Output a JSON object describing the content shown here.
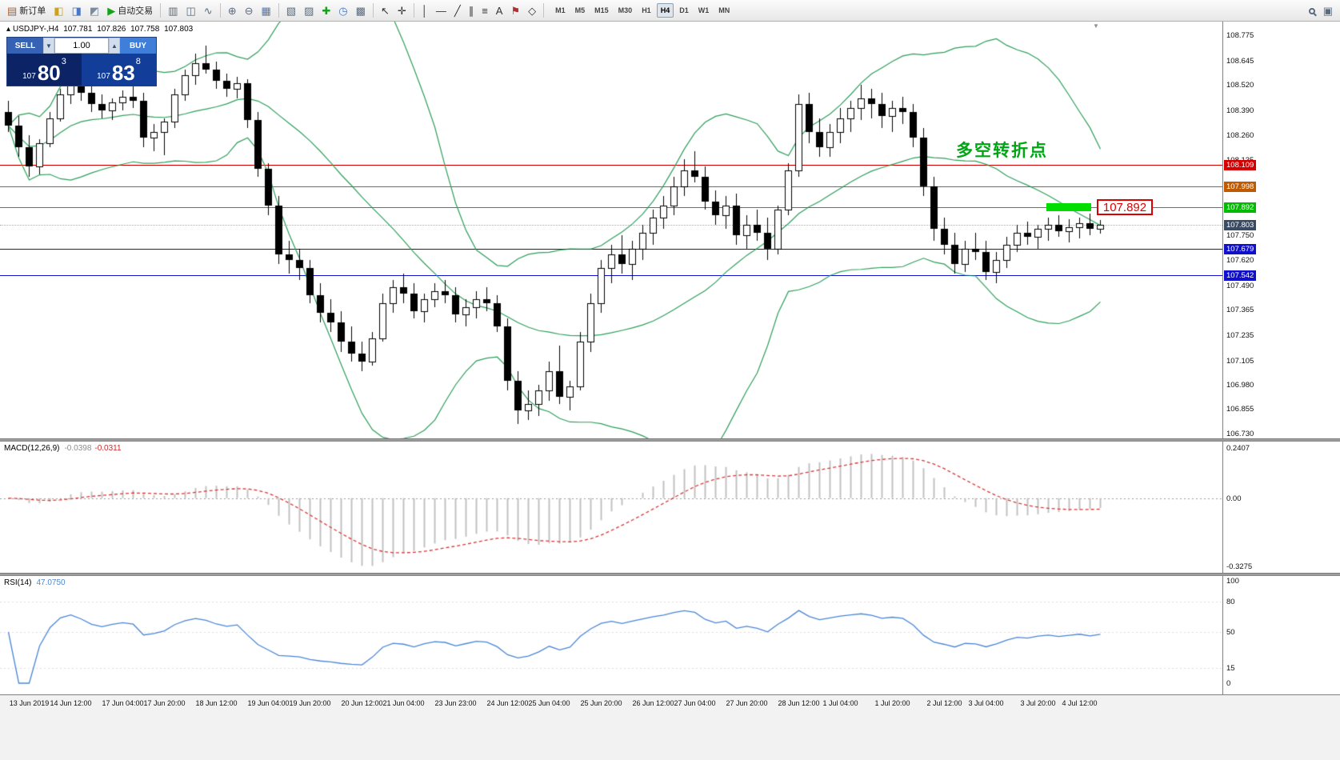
{
  "toolbar": {
    "items": [
      {
        "name": "new-order",
        "label": "新订单",
        "color": "#b05a2a"
      },
      {
        "name": "market-watch",
        "color": "#c8a220"
      },
      {
        "name": "data-window",
        "color": "#4a76c4"
      },
      {
        "name": "navigator",
        "color": "#7a8aa0"
      },
      {
        "name": "autotrade",
        "label": "自动交易",
        "color": "#17a317"
      },
      {
        "sep": true
      },
      {
        "name": "bar-chart",
        "color": "#5a6b7e"
      },
      {
        "name": "candle-chart",
        "color": "#5a6b7e"
      },
      {
        "name": "line-chart",
        "color": "#5a6b7e"
      },
      {
        "sep": true
      },
      {
        "name": "zoom-in",
        "color": "#5a6b7e"
      },
      {
        "name": "zoom-out",
        "color": "#5a6b7e"
      },
      {
        "name": "tile-windows",
        "color": "#4a76c4"
      },
      {
        "sep": true
      },
      {
        "name": "new-chart",
        "color": "#5a6b7e"
      },
      {
        "name": "profiles",
        "color": "#5a6b7e"
      },
      {
        "name": "indicators",
        "color": "#17a317"
      },
      {
        "name": "periods",
        "color": "#4a76c4"
      },
      {
        "name": "templates",
        "color": "#5a6b7e"
      },
      {
        "sep": true
      },
      {
        "name": "cursor",
        "color": "#333333"
      },
      {
        "name": "crosshair",
        "color": "#333333"
      },
      {
        "sep": true
      },
      {
        "name": "vertical-line",
        "color": "#333333"
      },
      {
        "name": "horizontal-line",
        "color": "#333333"
      },
      {
        "name": "trendline",
        "color": "#333333"
      },
      {
        "name": "channel",
        "color": "#333333"
      },
      {
        "name": "fibonacci",
        "color": "#333333"
      },
      {
        "name": "text",
        "color": "#333333"
      },
      {
        "name": "label",
        "color": "#b03030"
      },
      {
        "name": "shapes",
        "color": "#333333"
      },
      {
        "sep": true
      }
    ],
    "timeframes": {
      "options": [
        "M1",
        "M5",
        "M15",
        "M30",
        "H1",
        "H4",
        "D1",
        "W1",
        "MN"
      ],
      "active": "H4"
    },
    "right_items": [
      {
        "name": "search",
        "color": "#5a6b7e"
      },
      {
        "name": "window-list",
        "color": "#5a6b7e"
      }
    ]
  },
  "chart": {
    "info": {
      "marker": "▴",
      "symbol": "USDJPY-,H4",
      "open": "107.781",
      "high": "107.826",
      "low": "107.758",
      "close": "107.803"
    },
    "trade_panel": {
      "sell_label": "SELL",
      "buy_label": "BUY",
      "volume": "1.00",
      "sell_price": {
        "prefix": "107",
        "big": "80",
        "sup": "3"
      },
      "buy_price": {
        "prefix": "107",
        "big": "83",
        "sup": "8"
      }
    },
    "annotation": {
      "text": "多空转折点",
      "color": "#00A513"
    },
    "highlight": {
      "price": 107.892,
      "rect_color": "#00DD00",
      "callout": "107.892",
      "callout_color": "#DD0000"
    },
    "lines": [
      {
        "price": 108.109,
        "label": "108.109",
        "color": "#D40000"
      },
      {
        "price": 107.998,
        "label": "107.998",
        "color": "#C05A00"
      },
      {
        "price": 107.892,
        "label": "107.892",
        "color": "#00BB00"
      },
      {
        "price": 107.679,
        "label": "107.679",
        "color": "#1010CC"
      },
      {
        "price": 107.542,
        "label": "107.542",
        "color": "#1010CC"
      }
    ],
    "current_price": {
      "price": 107.803,
      "label": "107.803",
      "bg": "#3A4A63"
    },
    "y_ticks": [
      "108.775",
      "108.645",
      "108.520",
      "108.390",
      "108.260",
      "108.135",
      "108.005",
      "107.875",
      "107.750",
      "107.620",
      "107.490",
      "107.365",
      "107.235",
      "107.105",
      "106.980",
      "106.855",
      "106.730"
    ]
  },
  "macd": {
    "title": "MACD(12,26,9)",
    "value_main": "-0.0398",
    "value_signal": "-0.0311"
  },
  "rsi": {
    "title": "RSI(14)",
    "value": "47.0750"
  },
  "chart_data": {
    "type": "candlestick",
    "symbol": "USDJPY",
    "timeframe": "H4",
    "y_range": [
      106.705,
      108.845
    ],
    "candles": [
      [
        108.38,
        108.44,
        108.28,
        108.31
      ],
      [
        108.31,
        108.36,
        108.15,
        108.2
      ],
      [
        108.2,
        108.26,
        108.05,
        108.1
      ],
      [
        108.1,
        108.24,
        108.06,
        108.22
      ],
      [
        108.22,
        108.38,
        108.2,
        108.35
      ],
      [
        108.35,
        108.5,
        108.33,
        108.47
      ],
      [
        108.47,
        108.56,
        108.42,
        108.52
      ],
      [
        108.52,
        108.57,
        108.44,
        108.48
      ],
      [
        108.48,
        108.52,
        108.38,
        108.42
      ],
      [
        108.42,
        108.47,
        108.35,
        108.39
      ],
      [
        108.39,
        108.45,
        108.34,
        108.43
      ],
      [
        108.43,
        108.49,
        108.39,
        108.46
      ],
      [
        108.46,
        108.52,
        108.4,
        108.44
      ],
      [
        108.44,
        108.48,
        108.2,
        108.25
      ],
      [
        108.25,
        108.32,
        108.18,
        108.28
      ],
      [
        108.28,
        108.35,
        108.16,
        108.33
      ],
      [
        108.33,
        108.5,
        108.3,
        108.47
      ],
      [
        108.47,
        108.6,
        108.44,
        108.57
      ],
      [
        108.57,
        108.68,
        108.52,
        108.63
      ],
      [
        108.63,
        108.72,
        108.58,
        108.6
      ],
      [
        108.6,
        108.64,
        108.5,
        108.54
      ],
      [
        108.54,
        108.58,
        108.46,
        108.5
      ],
      [
        108.5,
        108.56,
        108.45,
        108.53
      ],
      [
        108.53,
        108.55,
        108.3,
        108.34
      ],
      [
        108.34,
        108.38,
        108.05,
        108.09
      ],
      [
        108.09,
        108.12,
        107.85,
        107.9
      ],
      [
        107.9,
        107.95,
        107.6,
        107.65
      ],
      [
        107.65,
        107.72,
        107.55,
        107.62
      ],
      [
        107.62,
        107.68,
        107.52,
        107.58
      ],
      [
        107.58,
        107.62,
        107.4,
        107.44
      ],
      [
        107.44,
        107.5,
        107.3,
        107.35
      ],
      [
        107.35,
        107.42,
        107.25,
        107.3
      ],
      [
        107.3,
        107.36,
        107.15,
        107.2
      ],
      [
        107.2,
        107.28,
        107.1,
        107.14
      ],
      [
        107.14,
        107.2,
        107.05,
        107.1
      ],
      [
        107.1,
        107.25,
        107.08,
        107.22
      ],
      [
        107.22,
        107.45,
        107.2,
        107.4
      ],
      [
        107.4,
        107.52,
        107.35,
        107.48
      ],
      [
        107.48,
        107.55,
        107.4,
        107.45
      ],
      [
        107.45,
        107.5,
        107.32,
        107.36
      ],
      [
        107.36,
        107.45,
        107.3,
        107.42
      ],
      [
        107.42,
        107.5,
        107.38,
        107.46
      ],
      [
        107.46,
        107.52,
        107.4,
        107.44
      ],
      [
        107.44,
        107.48,
        107.3,
        107.34
      ],
      [
        107.34,
        107.42,
        107.28,
        107.38
      ],
      [
        107.38,
        107.46,
        107.32,
        107.42
      ],
      [
        107.42,
        107.48,
        107.36,
        107.4
      ],
      [
        107.4,
        107.44,
        107.25,
        107.28
      ],
      [
        107.28,
        107.32,
        106.95,
        107.0
      ],
      [
        107.0,
        107.05,
        106.78,
        106.85
      ],
      [
        106.85,
        106.95,
        106.8,
        106.88
      ],
      [
        106.88,
        106.98,
        106.82,
        106.95
      ],
      [
        106.95,
        107.1,
        106.9,
        107.05
      ],
      [
        107.05,
        107.18,
        106.88,
        106.92
      ],
      [
        106.92,
        107.0,
        106.85,
        106.97
      ],
      [
        106.97,
        107.25,
        106.95,
        107.2
      ],
      [
        107.2,
        107.45,
        107.15,
        107.4
      ],
      [
        107.4,
        107.62,
        107.35,
        107.58
      ],
      [
        107.58,
        107.7,
        107.5,
        107.65
      ],
      [
        107.65,
        107.75,
        107.55,
        107.6
      ],
      [
        107.6,
        107.72,
        107.52,
        107.68
      ],
      [
        107.68,
        107.8,
        107.62,
        107.76
      ],
      [
        107.76,
        107.88,
        107.7,
        107.84
      ],
      [
        107.84,
        107.95,
        107.78,
        107.9
      ],
      [
        107.9,
        108.05,
        107.85,
        108.0
      ],
      [
        108.0,
        108.14,
        107.95,
        108.08
      ],
      [
        108.08,
        108.18,
        108.02,
        108.05
      ],
      [
        108.05,
        108.1,
        107.88,
        107.92
      ],
      [
        107.92,
        107.98,
        107.8,
        107.85
      ],
      [
        107.85,
        107.95,
        107.78,
        107.9
      ],
      [
        107.9,
        107.96,
        107.7,
        107.75
      ],
      [
        107.75,
        107.85,
        107.68,
        107.8
      ],
      [
        107.8,
        107.88,
        107.72,
        107.76
      ],
      [
        107.76,
        107.84,
        107.62,
        107.68
      ],
      [
        107.68,
        107.9,
        107.65,
        107.88
      ],
      [
        107.88,
        108.12,
        107.85,
        108.08
      ],
      [
        108.08,
        108.47,
        108.05,
        108.42
      ],
      [
        108.42,
        108.48,
        108.22,
        108.28
      ],
      [
        108.28,
        108.35,
        108.15,
        108.2
      ],
      [
        108.2,
        108.32,
        108.15,
        108.28
      ],
      [
        108.28,
        108.4,
        108.22,
        108.35
      ],
      [
        108.35,
        108.44,
        108.28,
        108.4
      ],
      [
        108.4,
        108.52,
        108.34,
        108.45
      ],
      [
        108.45,
        108.5,
        108.35,
        108.42
      ],
      [
        108.42,
        108.48,
        108.3,
        108.36
      ],
      [
        108.36,
        108.44,
        108.28,
        108.4
      ],
      [
        108.4,
        108.46,
        108.32,
        108.38
      ],
      [
        108.38,
        108.42,
        108.2,
        108.25
      ],
      [
        108.25,
        108.3,
        107.95,
        108.0
      ],
      [
        108.0,
        108.05,
        107.72,
        107.78
      ],
      [
        107.78,
        107.84,
        107.65,
        107.7
      ],
      [
        107.7,
        107.76,
        107.55,
        107.6
      ],
      [
        107.6,
        107.72,
        107.56,
        107.68
      ],
      [
        107.68,
        107.76,
        107.62,
        107.66
      ],
      [
        107.66,
        107.72,
        107.52,
        107.56
      ],
      [
        107.56,
        107.66,
        107.5,
        107.62
      ],
      [
        107.62,
        107.74,
        107.58,
        107.7
      ],
      [
        107.7,
        107.8,
        107.66,
        107.76
      ],
      [
        107.76,
        107.82,
        107.7,
        107.74
      ],
      [
        107.74,
        107.8,
        107.68,
        107.78
      ],
      [
        107.78,
        107.84,
        107.72,
        107.8
      ],
      [
        107.8,
        107.85,
        107.74,
        107.77
      ],
      [
        107.77,
        107.83,
        107.71,
        107.79
      ],
      [
        107.79,
        107.84,
        107.73,
        107.81
      ],
      [
        107.81,
        107.86,
        107.75,
        107.78
      ],
      [
        107.781,
        107.826,
        107.758,
        107.803
      ]
    ],
    "x_labels": [
      {
        "i": 2,
        "t": "13 Jun 2019"
      },
      {
        "i": 6,
        "t": "14 Jun 12:00"
      },
      {
        "i": 11,
        "t": "17 Jun 04:00"
      },
      {
        "i": 15,
        "t": "17 Jun 20:00"
      },
      {
        "i": 20,
        "t": "18 Jun 12:00"
      },
      {
        "i": 25,
        "t": "19 Jun 04:00"
      },
      {
        "i": 29,
        "t": "19 Jun 20:00"
      },
      {
        "i": 34,
        "t": "20 Jun 12:00"
      },
      {
        "i": 38,
        "t": "21 Jun 04:00"
      },
      {
        "i": 43,
        "t": "23 Jun 23:00"
      },
      {
        "i": 48,
        "t": "24 Jun 12:00"
      },
      {
        "i": 52,
        "t": "25 Jun 04:00"
      },
      {
        "i": 57,
        "t": "25 Jun 20:00"
      },
      {
        "i": 62,
        "t": "26 Jun 12:00"
      },
      {
        "i": 66,
        "t": "27 Jun 04:00"
      },
      {
        "i": 71,
        "t": "27 Jun 20:00"
      },
      {
        "i": 76,
        "t": "28 Jun 12:00"
      },
      {
        "i": 80,
        "t": "1 Jul 04:00"
      },
      {
        "i": 85,
        "t": "1 Jul 20:00"
      },
      {
        "i": 90,
        "t": "2 Jul 12:00"
      },
      {
        "i": 94,
        "t": "3 Jul 04:00"
      },
      {
        "i": 99,
        "t": "3 Jul 20:00"
      },
      {
        "i": 103,
        "t": "4 Jul 12:00"
      }
    ],
    "indicators": {
      "bollinger": {
        "period": 20,
        "deviation": 2,
        "color": "#2E9E5B"
      },
      "macd": {
        "fast": 12,
        "slow": 26,
        "signal": 9,
        "hist_color": "#C2C2C2",
        "signal_color": "#D93636",
        "range": [
          -0.3275,
          0.2407
        ],
        "ticks": [
          "0.2407",
          "0.00",
          "-0.3275"
        ]
      },
      "rsi": {
        "period": 14,
        "color": "#4A86D8",
        "range": [
          0,
          100
        ],
        "ticks": [
          "100",
          "80",
          "50",
          "15",
          "0"
        ]
      }
    }
  }
}
